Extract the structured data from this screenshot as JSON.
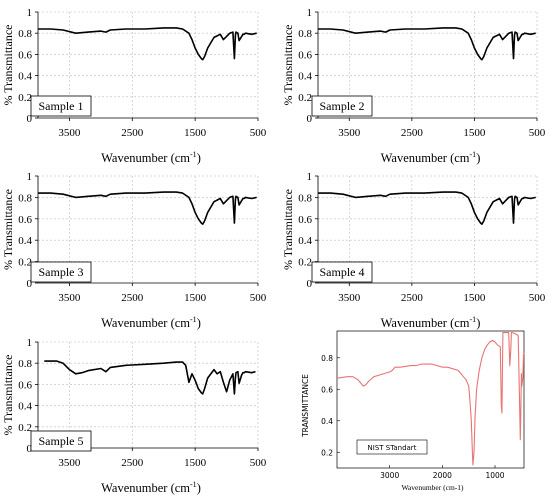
{
  "chart_data": [
    {
      "type": "line",
      "sample_label": "Sample 1",
      "xlabel": "Wavenumber",
      "xlabel_unit": "(cm",
      "xlabel_sup": "-1",
      "xlabel_close": ")",
      "ylabel": "% Transmittance",
      "xlim": [
        4000,
        500
      ],
      "ylim": [
        0,
        1
      ],
      "x_ticks": [
        3500,
        2500,
        1500,
        500
      ],
      "y_ticks": [
        0,
        0.2,
        0.4,
        0.6,
        0.8,
        1
      ],
      "y_tick_labels": [
        "0",
        "0.2",
        "0.4",
        "0.6",
        "0.8",
        "1"
      ],
      "grid": true,
      "series": [
        {
          "x": [
            4000,
            3800,
            3600,
            3400,
            3200,
            3000,
            2920,
            2850,
            2600,
            2300,
            2000,
            1800,
            1700,
            1600,
            1550,
            1500,
            1450,
            1400,
            1380,
            1350,
            1300,
            1200,
            1100,
            1050,
            1000,
            950,
            900,
            875,
            860,
            850,
            820,
            800,
            760,
            740,
            720,
            700,
            600,
            520
          ],
          "y": [
            0.84,
            0.84,
            0.83,
            0.8,
            0.81,
            0.82,
            0.81,
            0.83,
            0.84,
            0.84,
            0.85,
            0.85,
            0.84,
            0.8,
            0.74,
            0.66,
            0.6,
            0.56,
            0.55,
            0.58,
            0.66,
            0.76,
            0.79,
            0.74,
            0.77,
            0.8,
            0.81,
            0.56,
            0.78,
            0.81,
            0.8,
            0.73,
            0.77,
            0.79,
            0.79,
            0.8,
            0.79,
            0.8
          ]
        }
      ]
    },
    {
      "type": "line",
      "sample_label": "Sample 2",
      "xlabel": "Wavenumber",
      "xlabel_unit": "(cm",
      "xlabel_sup": "-1",
      "xlabel_close": ")",
      "ylabel": "% Transmittance",
      "xlim": [
        4000,
        500
      ],
      "ylim": [
        0,
        1
      ],
      "x_ticks": [
        3500,
        2500,
        1500,
        500
      ],
      "y_ticks": [
        0,
        0.2,
        0.4,
        0.6,
        0.8,
        1
      ],
      "y_tick_labels": [
        "0",
        "0.2",
        "0.4",
        "0.6",
        "0.8",
        "1"
      ],
      "grid": true,
      "series": [
        {
          "x": [
            4000,
            3800,
            3600,
            3400,
            3200,
            3000,
            2920,
            2850,
            2600,
            2300,
            2000,
            1800,
            1700,
            1600,
            1550,
            1500,
            1450,
            1400,
            1380,
            1350,
            1300,
            1200,
            1100,
            1050,
            1000,
            950,
            900,
            875,
            860,
            850,
            820,
            800,
            760,
            740,
            720,
            700,
            600,
            520
          ],
          "y": [
            0.84,
            0.84,
            0.83,
            0.8,
            0.81,
            0.82,
            0.81,
            0.83,
            0.84,
            0.84,
            0.85,
            0.85,
            0.84,
            0.8,
            0.74,
            0.66,
            0.6,
            0.56,
            0.55,
            0.58,
            0.66,
            0.76,
            0.79,
            0.74,
            0.77,
            0.8,
            0.81,
            0.56,
            0.78,
            0.81,
            0.8,
            0.73,
            0.77,
            0.79,
            0.79,
            0.8,
            0.79,
            0.8
          ]
        }
      ]
    },
    {
      "type": "line",
      "sample_label": "Sample 3",
      "xlabel": "Wavenumber",
      "xlabel_unit": "(cm",
      "xlabel_sup": "-1",
      "xlabel_close": ")",
      "ylabel": "% Transmittance",
      "xlim": [
        4000,
        500
      ],
      "ylim": [
        0,
        1
      ],
      "x_ticks": [
        3500,
        2500,
        1500,
        500
      ],
      "y_ticks": [
        0,
        0.2,
        0.4,
        0.6,
        0.8,
        1
      ],
      "y_tick_labels": [
        "0",
        "0.2",
        "0.4",
        "0.6",
        "0.8",
        "1"
      ],
      "grid": true,
      "series": [
        {
          "x": [
            4000,
            3800,
            3600,
            3400,
            3200,
            3000,
            2920,
            2850,
            2600,
            2300,
            2000,
            1800,
            1700,
            1600,
            1550,
            1500,
            1450,
            1400,
            1380,
            1350,
            1300,
            1200,
            1100,
            1050,
            1000,
            950,
            900,
            875,
            860,
            850,
            820,
            800,
            760,
            740,
            720,
            700,
            600,
            520
          ],
          "y": [
            0.84,
            0.84,
            0.83,
            0.8,
            0.81,
            0.82,
            0.81,
            0.83,
            0.84,
            0.84,
            0.85,
            0.85,
            0.84,
            0.8,
            0.74,
            0.66,
            0.6,
            0.56,
            0.55,
            0.58,
            0.66,
            0.76,
            0.79,
            0.74,
            0.77,
            0.8,
            0.81,
            0.56,
            0.78,
            0.81,
            0.8,
            0.73,
            0.77,
            0.79,
            0.79,
            0.8,
            0.79,
            0.8
          ]
        }
      ]
    },
    {
      "type": "line",
      "sample_label": "Sample 4",
      "xlabel": "Wavenumber",
      "xlabel_unit": "(cm",
      "xlabel_sup": "-1",
      "xlabel_close": ")",
      "ylabel": "% Transmittance",
      "xlim": [
        4000,
        500
      ],
      "ylim": [
        0,
        1
      ],
      "x_ticks": [
        3500,
        2500,
        1500,
        500
      ],
      "y_ticks": [
        0,
        0.2,
        0.4,
        0.6,
        0.8,
        1
      ],
      "y_tick_labels": [
        "0",
        "0.2",
        "0.4",
        "0.6",
        "0.8",
        "1"
      ],
      "grid": true,
      "series": [
        {
          "x": [
            4000,
            3800,
            3600,
            3400,
            3200,
            3000,
            2920,
            2850,
            2600,
            2300,
            2000,
            1800,
            1700,
            1600,
            1550,
            1500,
            1450,
            1400,
            1380,
            1350,
            1300,
            1200,
            1100,
            1050,
            1000,
            950,
            900,
            875,
            860,
            850,
            820,
            800,
            760,
            740,
            720,
            700,
            600,
            520
          ],
          "y": [
            0.84,
            0.84,
            0.83,
            0.8,
            0.81,
            0.82,
            0.81,
            0.83,
            0.84,
            0.84,
            0.85,
            0.85,
            0.84,
            0.8,
            0.74,
            0.66,
            0.6,
            0.56,
            0.55,
            0.58,
            0.66,
            0.76,
            0.79,
            0.74,
            0.77,
            0.8,
            0.81,
            0.56,
            0.78,
            0.81,
            0.8,
            0.73,
            0.77,
            0.79,
            0.79,
            0.8,
            0.79,
            0.8
          ]
        }
      ]
    },
    {
      "type": "line",
      "sample_label": "Sample 5",
      "xlabel": "Wavenumber",
      "xlabel_unit": "(cm",
      "xlabel_sup": "-1",
      "xlabel_close": ")",
      "ylabel": "% Transmittance",
      "xlim": [
        4000,
        500
      ],
      "ylim": [
        0,
        1
      ],
      "x_ticks": [
        3500,
        2500,
        1500,
        500
      ],
      "y_ticks": [
        0,
        0.2,
        0.4,
        0.6,
        0.8,
        1
      ],
      "y_tick_labels": [
        "0",
        "0.2",
        "0.4",
        "0.6",
        "0.8",
        "1"
      ],
      "grid": true,
      "series": [
        {
          "x": [
            3900,
            3700,
            3600,
            3500,
            3400,
            3300,
            3200,
            3000,
            2920,
            2850,
            2600,
            2300,
            2000,
            1800,
            1700,
            1650,
            1600,
            1550,
            1500,
            1450,
            1400,
            1380,
            1350,
            1300,
            1200,
            1150,
            1100,
            1050,
            1000,
            950,
            900,
            875,
            860,
            850,
            820,
            800,
            760,
            740,
            720,
            700,
            600,
            540
          ],
          "y": [
            0.82,
            0.82,
            0.8,
            0.74,
            0.7,
            0.71,
            0.73,
            0.75,
            0.72,
            0.76,
            0.78,
            0.79,
            0.8,
            0.81,
            0.81,
            0.78,
            0.62,
            0.7,
            0.64,
            0.56,
            0.52,
            0.51,
            0.56,
            0.66,
            0.74,
            0.7,
            0.72,
            0.62,
            0.53,
            0.64,
            0.7,
            0.51,
            0.66,
            0.71,
            0.72,
            0.61,
            0.69,
            0.71,
            0.71,
            0.72,
            0.71,
            0.72
          ]
        }
      ]
    },
    {
      "type": "line",
      "legend_text": "NIST STandart",
      "xlabel": "Wavenumber (cm-1)",
      "ylabel": "TRANSMITTANCE",
      "xlim": [
        4000,
        450
      ],
      "ylim": [
        0.1,
        0.97
      ],
      "x_ticks": [
        3000,
        2000,
        1000
      ],
      "y_ticks": [
        0.2,
        0.4,
        0.6,
        0.8
      ],
      "y_tick_labels": [
        "0.2",
        "0.4",
        "0.6",
        "0.8"
      ],
      "grid": false,
      "line_color": "#e87474",
      "series": [
        {
          "x": [
            4000,
            3800,
            3700,
            3600,
            3550,
            3500,
            3450,
            3400,
            3300,
            3200,
            3100,
            3000,
            2950,
            2900,
            2800,
            2600,
            2500,
            2400,
            2300,
            2200,
            2100,
            2000,
            1900,
            1800,
            1700,
            1650,
            1600,
            1550,
            1500,
            1480,
            1450,
            1430,
            1420,
            1400,
            1380,
            1350,
            1300,
            1250,
            1200,
            1150,
            1100,
            1050,
            1000,
            950,
            900,
            880,
            870,
            860,
            850,
            830,
            800,
            770,
            740,
            720,
            700,
            690,
            670,
            600,
            560,
            540,
            520,
            510,
            500,
            490,
            470,
            460,
            450
          ],
          "y": [
            0.67,
            0.68,
            0.68,
            0.66,
            0.64,
            0.62,
            0.63,
            0.65,
            0.68,
            0.69,
            0.7,
            0.71,
            0.72,
            0.74,
            0.74,
            0.75,
            0.75,
            0.76,
            0.76,
            0.76,
            0.75,
            0.74,
            0.74,
            0.73,
            0.72,
            0.7,
            0.68,
            0.66,
            0.62,
            0.55,
            0.4,
            0.2,
            0.12,
            0.2,
            0.42,
            0.6,
            0.72,
            0.8,
            0.85,
            0.88,
            0.9,
            0.91,
            0.9,
            0.88,
            0.87,
            0.5,
            0.45,
            0.7,
            0.96,
            0.96,
            0.96,
            0.96,
            0.96,
            0.75,
            0.85,
            0.96,
            0.96,
            0.95,
            0.94,
            0.6,
            0.28,
            0.45,
            0.7,
            0.62,
            0.68,
            0.82,
            0.83
          ]
        }
      ]
    }
  ]
}
